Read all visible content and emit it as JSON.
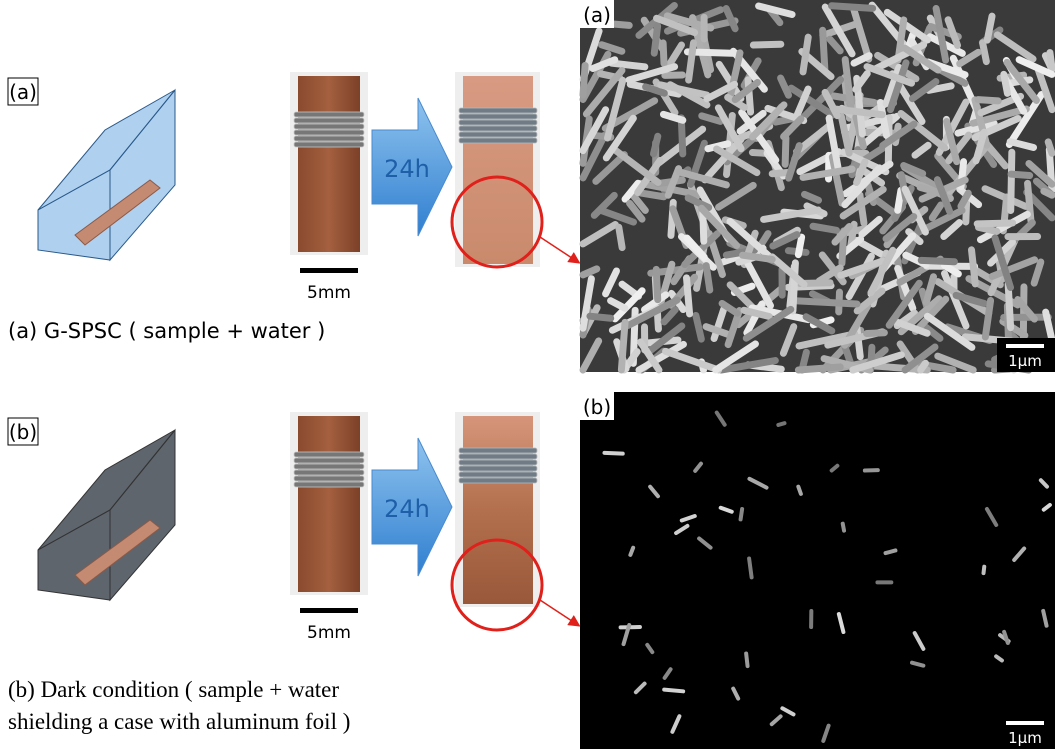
{
  "panels": [
    {
      "label": "(a)",
      "scale": "5mm",
      "arrow": "24h",
      "caption": [
        "(a) G-SPSC ( sample + water )"
      ],
      "sem_label": "(a)",
      "sem_scale": "1μm"
    },
    {
      "label": "(b)",
      "scale": "5mm",
      "arrow": "24h",
      "caption": [
        "(b) Dark condition  ( sample + water",
        "shielding a case with aluminum foil )"
      ],
      "sem_label": "(b)",
      "sem_scale": "1μm"
    }
  ]
}
